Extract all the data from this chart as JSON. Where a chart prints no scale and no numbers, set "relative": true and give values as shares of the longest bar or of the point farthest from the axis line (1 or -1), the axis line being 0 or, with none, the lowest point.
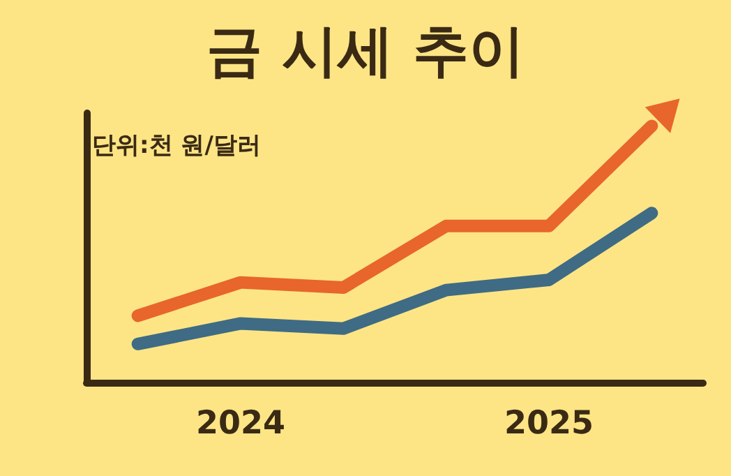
{
  "chart_data": {
    "type": "line",
    "title": "금 시세 추이",
    "annotations": [
      "단위:천 원/달러"
    ],
    "relative": true,
    "categories": [
      null,
      "2024",
      null,
      null,
      "2025",
      null
    ],
    "series": [
      {
        "color": "#e8652b",
        "values": [
          0.26,
          0.39,
          0.37,
          0.61,
          0.61,
          1
        ]
      },
      {
        "color": "#3f6b84",
        "values": [
          0.15,
          0.23,
          0.21,
          0.36,
          0.4,
          0.66
        ]
      }
    ],
    "grid": false
  }
}
